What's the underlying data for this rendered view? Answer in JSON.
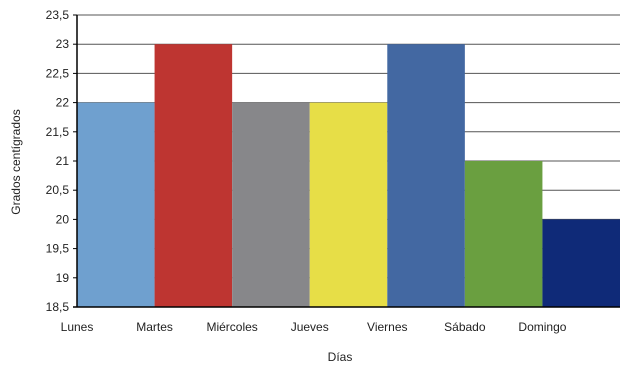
{
  "chart_data": {
    "type": "bar",
    "categories": [
      "Lunes",
      "Martes",
      "Miércoles",
      "Jueves",
      "Viernes",
      "Sábado",
      "Domingo"
    ],
    "values": [
      22,
      23,
      22,
      22,
      23,
      21,
      20
    ],
    "colors": [
      "#6FA0CF",
      "#BE3531",
      "#87878A",
      "#E7DE47",
      "#4368A2",
      "#6A9F40",
      "#0F2A78"
    ],
    "xlabel": "Días",
    "ylabel": "Grados centígrados",
    "ylim": [
      18.5,
      23.5
    ],
    "yticks": [
      "18,5",
      "19",
      "19,5",
      "20",
      "20,5",
      "21",
      "21,5",
      "22",
      "22,5",
      "23",
      "23,5"
    ],
    "grid": true
  }
}
